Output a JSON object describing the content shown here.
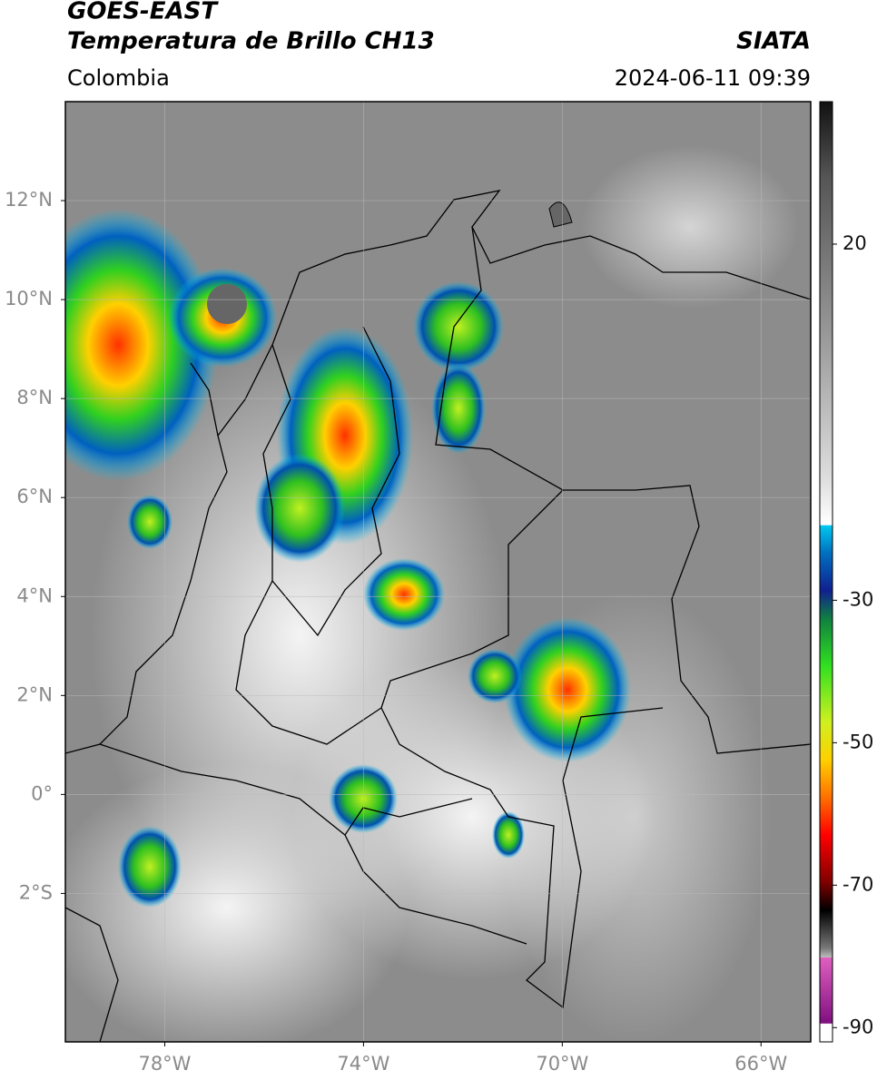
{
  "header": {
    "title": "GOES-EAST",
    "subtitle": "Temperatura de Brillo CH13",
    "source": "SIATA",
    "region": "Colombia",
    "datetime": "2024-06-11 09:39"
  },
  "map": {
    "xlim": [
      -80,
      -65
    ],
    "ylim": [
      -5,
      14
    ],
    "xticks": [
      {
        "value": -78,
        "label": "78°W"
      },
      {
        "value": -74,
        "label": "74°W"
      },
      {
        "value": -70,
        "label": "70°W"
      },
      {
        "value": -66,
        "label": "66°W"
      }
    ],
    "yticks": [
      {
        "value": 12,
        "label": "12°N"
      },
      {
        "value": 10,
        "label": "10°N"
      },
      {
        "value": 8,
        "label": "8°N"
      },
      {
        "value": 6,
        "label": "6°N"
      },
      {
        "value": 4,
        "label": "4°N"
      },
      {
        "value": 2,
        "label": "2°N"
      },
      {
        "value": 0,
        "label": "0°"
      },
      {
        "value": -2,
        "label": "2°S"
      }
    ],
    "grid": true
  },
  "colorbar": {
    "clim": [
      -92,
      40
    ],
    "ticks": [
      20,
      -30,
      -50,
      -70,
      -90
    ]
  }
}
